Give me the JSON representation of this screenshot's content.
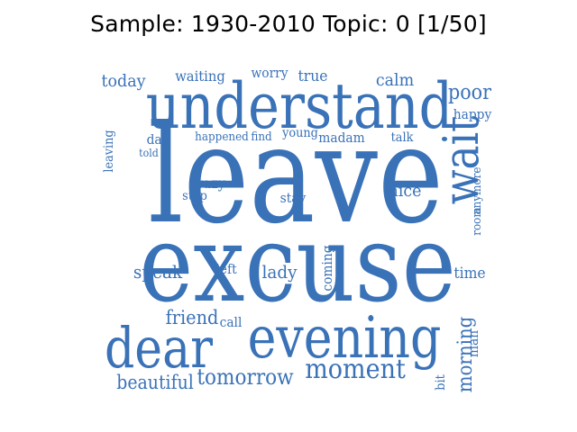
{
  "title": "Sample: 1930-2010 Topic: 0 [1/50]",
  "word_color": "#3a72b8",
  "words": [
    {
      "id": "leave",
      "text": "leave"
    },
    {
      "id": "excuse",
      "text": "excuse"
    },
    {
      "id": "understand",
      "text": "understand"
    },
    {
      "id": "evening",
      "text": "evening"
    },
    {
      "id": "dear",
      "text": "dear"
    },
    {
      "id": "wait",
      "text": "wait"
    },
    {
      "id": "moment",
      "text": "moment"
    },
    {
      "id": "tomorrow",
      "text": "tomorrow"
    },
    {
      "id": "beautiful",
      "text": "beautiful"
    },
    {
      "id": "friend",
      "text": "friend"
    },
    {
      "id": "call",
      "text": "call"
    },
    {
      "id": "speak",
      "text": "speak"
    },
    {
      "id": "left",
      "text": "left"
    },
    {
      "id": "lady",
      "text": "lady"
    },
    {
      "id": "coming",
      "text": "coming"
    },
    {
      "id": "time",
      "text": "time"
    },
    {
      "id": "morning",
      "text": "morning"
    },
    {
      "id": "man",
      "text": "man"
    },
    {
      "id": "bit",
      "text": "bit"
    },
    {
      "id": "nice",
      "text": "nice"
    },
    {
      "id": "stay",
      "text": "stay"
    },
    {
      "id": "crazy",
      "text": "crazy"
    },
    {
      "id": "stop",
      "text": "stop"
    },
    {
      "id": "poor",
      "text": "poor"
    },
    {
      "id": "happy",
      "text": "happy"
    },
    {
      "id": "calm",
      "text": "calm"
    },
    {
      "id": "talk",
      "text": "talk"
    },
    {
      "id": "madam",
      "text": "madam"
    },
    {
      "id": "young",
      "text": "young"
    },
    {
      "id": "find",
      "text": "find"
    },
    {
      "id": "happened",
      "text": "happened"
    },
    {
      "id": "day",
      "text": "day"
    },
    {
      "id": "told",
      "text": "told"
    },
    {
      "id": "leaving",
      "text": "leaving"
    },
    {
      "id": "today",
      "text": "today"
    },
    {
      "id": "waiting",
      "text": "waiting"
    },
    {
      "id": "worry",
      "text": "worry"
    },
    {
      "id": "true",
      "text": "true"
    },
    {
      "id": "anymore",
      "text": "anymore"
    },
    {
      "id": "room",
      "text": "room"
    }
  ]
}
